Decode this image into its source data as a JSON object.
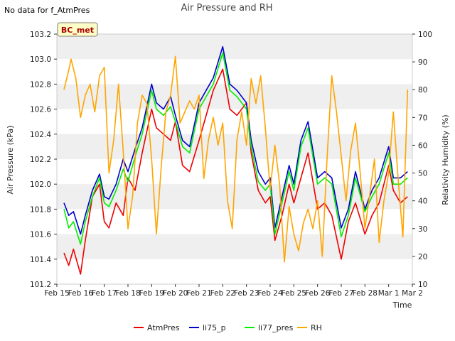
{
  "chart_data": {
    "type": "line",
    "title": "Air Pressure and RH",
    "note": "No data for f_AtmPres",
    "badge": "BC_met",
    "xlabel": "Time",
    "ylabel": "Air Pressure (kPa)",
    "y2label": "Relativity Humidity (%)",
    "x_ticks": [
      "Feb 15",
      "Feb 16",
      "Feb 17",
      "Feb 18",
      "Feb 19",
      "Feb 20",
      "Feb 21",
      "Feb 22",
      "Feb 23",
      "Feb 24",
      "Feb 25",
      "Feb 26",
      "Feb 27",
      "Feb 28",
      "Mar 1",
      "Mar 2"
    ],
    "xlim": [
      0,
      15
    ],
    "ylim": [
      101.2,
      103.2
    ],
    "y_ticks": [
      "101.2",
      "101.4",
      "101.6",
      "101.8",
      "102.0",
      "102.2",
      "102.4",
      "102.6",
      "102.8",
      "103.0",
      "103.2"
    ],
    "y2lim": [
      10,
      100
    ],
    "y2_ticks": [
      "10",
      "20",
      "30",
      "40",
      "50",
      "60",
      "70",
      "80",
      "90",
      "100"
    ],
    "grid": "horizontal bands",
    "legend_position": "bottom-center",
    "colors": {
      "AtmPres": "#ee0000",
      "li75_p": "#0000cc",
      "li77_pres": "#00ee00",
      "RH": "#ffa500",
      "band": "#efefef"
    },
    "series": [
      {
        "name": "AtmPres",
        "axis": "left",
        "x": [
          0.3,
          0.5,
          0.7,
          1.0,
          1.2,
          1.5,
          1.8,
          2.0,
          2.2,
          2.5,
          2.8,
          3.0,
          3.3,
          3.6,
          4.0,
          4.2,
          4.5,
          4.8,
          5.0,
          5.3,
          5.6,
          6.0,
          6.3,
          6.6,
          7.0,
          7.3,
          7.6,
          8.0,
          8.2,
          8.5,
          8.8,
          9.0,
          9.2,
          9.5,
          9.8,
          10.0,
          10.3,
          10.6,
          11.0,
          11.3,
          11.6,
          12.0,
          12.3,
          12.6,
          13.0,
          13.3,
          13.6,
          14.0,
          14.2,
          14.5,
          14.8
        ],
        "values": [
          101.45,
          101.35,
          101.48,
          101.28,
          101.55,
          101.9,
          102.0,
          101.7,
          101.65,
          101.85,
          101.75,
          102.05,
          101.95,
          102.25,
          102.6,
          102.45,
          102.4,
          102.35,
          102.5,
          102.15,
          102.1,
          102.35,
          102.55,
          102.75,
          102.92,
          102.6,
          102.55,
          102.65,
          102.25,
          101.95,
          101.85,
          101.9,
          101.55,
          101.75,
          102.0,
          101.85,
          102.05,
          102.25,
          101.8,
          101.85,
          101.75,
          101.4,
          101.7,
          101.85,
          101.6,
          101.75,
          101.85,
          102.15,
          101.95,
          101.85,
          101.9
        ]
      },
      {
        "name": "li75_p",
        "axis": "left",
        "x": [
          0.3,
          0.5,
          0.7,
          1.0,
          1.2,
          1.5,
          1.8,
          2.0,
          2.2,
          2.5,
          2.8,
          3.0,
          3.3,
          3.6,
          4.0,
          4.2,
          4.5,
          4.8,
          5.0,
          5.3,
          5.6,
          6.0,
          6.3,
          6.6,
          7.0,
          7.3,
          7.6,
          8.0,
          8.2,
          8.5,
          8.8,
          9.0,
          9.2,
          9.5,
          9.8,
          10.0,
          10.3,
          10.6,
          11.0,
          11.3,
          11.6,
          12.0,
          12.3,
          12.6,
          13.0,
          13.3,
          13.6,
          14.0,
          14.2,
          14.5,
          14.8
        ],
        "values": [
          101.85,
          101.75,
          101.78,
          101.6,
          101.75,
          101.95,
          102.08,
          101.9,
          101.88,
          102.0,
          102.2,
          102.1,
          102.28,
          102.45,
          102.8,
          102.65,
          102.6,
          102.7,
          102.55,
          102.35,
          102.3,
          102.65,
          102.75,
          102.85,
          103.1,
          102.8,
          102.75,
          102.65,
          102.35,
          102.1,
          102.0,
          102.05,
          101.65,
          101.9,
          102.15,
          102.0,
          102.35,
          102.5,
          102.05,
          102.1,
          102.05,
          101.65,
          101.8,
          102.1,
          101.8,
          101.95,
          102.05,
          102.3,
          102.05,
          102.05,
          102.1
        ]
      },
      {
        "name": "li77_pres",
        "axis": "left",
        "x": [
          0.3,
          0.5,
          0.7,
          1.0,
          1.2,
          1.5,
          1.8,
          2.0,
          2.2,
          2.5,
          2.8,
          3.0,
          3.3,
          3.6,
          4.0,
          4.2,
          4.5,
          4.8,
          5.0,
          5.3,
          5.6,
          6.0,
          6.3,
          6.6,
          7.0,
          7.3,
          7.6,
          8.0,
          8.2,
          8.5,
          8.8,
          9.0,
          9.2,
          9.5,
          9.8,
          10.0,
          10.3,
          10.6,
          11.0,
          11.3,
          11.6,
          12.0,
          12.3,
          12.6,
          13.0,
          13.3,
          13.6,
          14.0,
          14.2,
          14.5,
          14.8
        ],
        "values": [
          101.8,
          101.65,
          101.7,
          101.52,
          101.7,
          101.9,
          102.05,
          101.85,
          101.82,
          101.95,
          102.12,
          102.02,
          102.22,
          102.4,
          102.75,
          102.6,
          102.55,
          102.62,
          102.5,
          102.3,
          102.25,
          102.6,
          102.7,
          102.8,
          103.05,
          102.75,
          102.7,
          102.6,
          102.3,
          102.02,
          101.95,
          102.0,
          101.6,
          101.85,
          102.1,
          101.95,
          102.3,
          102.45,
          102.0,
          102.05,
          102.0,
          101.58,
          101.75,
          102.05,
          101.78,
          101.9,
          102.0,
          102.25,
          102.0,
          102.0,
          102.05
        ]
      },
      {
        "name": "RH",
        "axis": "right",
        "x": [
          0.3,
          0.5,
          0.6,
          0.8,
          1.0,
          1.2,
          1.4,
          1.6,
          1.8,
          2.0,
          2.2,
          2.4,
          2.6,
          2.8,
          3.0,
          3.2,
          3.4,
          3.6,
          3.8,
          4.0,
          4.2,
          4.4,
          4.6,
          4.8,
          5.0,
          5.2,
          5.4,
          5.6,
          5.8,
          6.0,
          6.2,
          6.4,
          6.6,
          6.8,
          7.0,
          7.2,
          7.4,
          7.6,
          7.8,
          8.0,
          8.2,
          8.4,
          8.6,
          8.8,
          9.0,
          9.2,
          9.4,
          9.6,
          9.8,
          10.0,
          10.2,
          10.4,
          10.6,
          10.8,
          11.0,
          11.2,
          11.4,
          11.6,
          11.8,
          12.0,
          12.2,
          12.4,
          12.6,
          12.8,
          13.0,
          13.2,
          13.4,
          13.6,
          13.8,
          14.0,
          14.2,
          14.4,
          14.6,
          14.8
        ],
        "values": [
          80,
          87,
          91,
          84,
          70,
          78,
          82,
          72,
          85,
          88,
          50,
          62,
          82,
          58,
          30,
          42,
          68,
          78,
          75,
          55,
          28,
          52,
          72,
          78,
          92,
          68,
          72,
          76,
          73,
          78,
          48,
          62,
          70,
          60,
          68,
          40,
          30,
          62,
          72,
          60,
          84,
          75,
          85,
          66,
          44,
          60,
          46,
          18,
          38,
          28,
          22,
          32,
          37,
          30,
          40,
          20,
          55,
          85,
          72,
          56,
          40,
          58,
          68,
          50,
          30,
          42,
          55,
          25,
          40,
          50,
          72,
          48,
          27,
          80
        ]
      }
    ]
  }
}
